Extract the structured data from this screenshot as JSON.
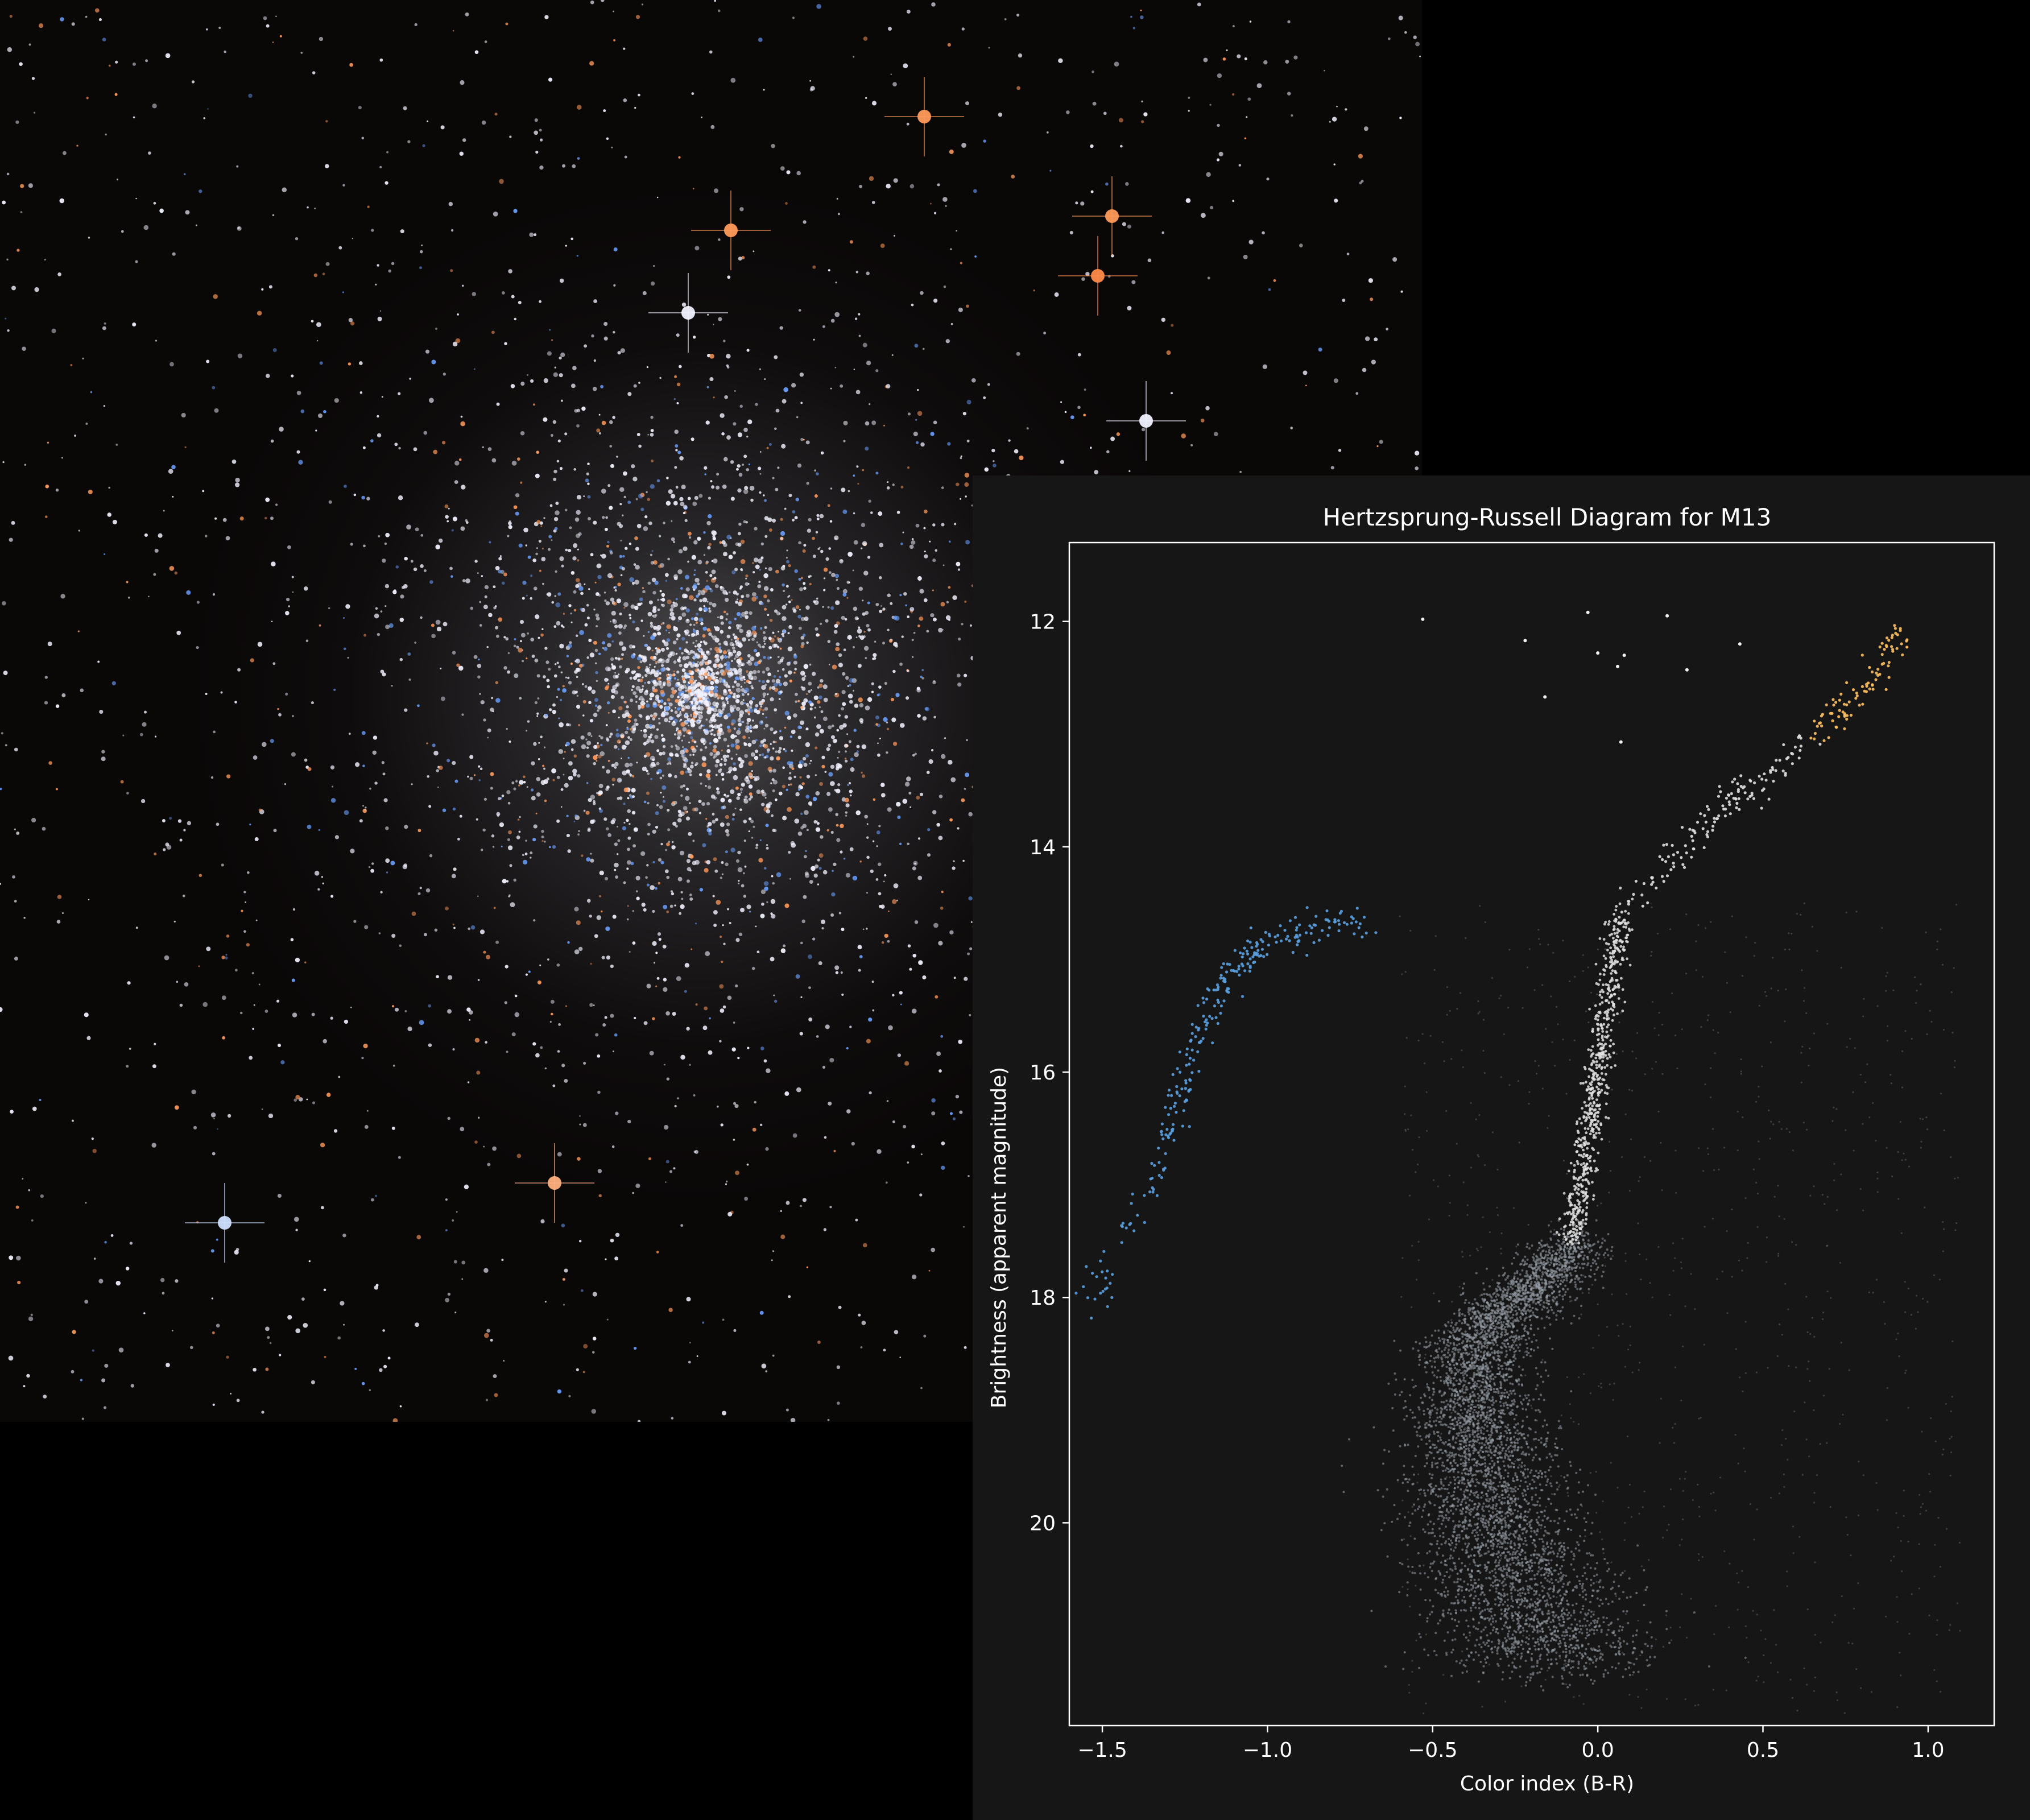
{
  "photo": {
    "name": "M13 globular cluster starfield",
    "colors": {
      "background": "#0a0707",
      "white_star": "#f2f2ff",
      "blue_star": "#6aa0ff",
      "orange_star": "#ff9a5a",
      "core_glow": "#e6e6f0"
    }
  },
  "chart_data": {
    "type": "scatter",
    "title": "Hertzsprung-Russell Diagram for M13",
    "xlabel": "Color index (B-R)",
    "ylabel": "Brightness (apparent magnitude)",
    "xlim": [
      -1.6,
      1.2
    ],
    "ylim": [
      21.8,
      11.3
    ],
    "y_inverted": true,
    "grid": false,
    "legend": "none",
    "x_ticks": [
      -1.5,
      -1.0,
      -0.5,
      0.0,
      0.5,
      1.0
    ],
    "x_tick_labels": [
      "−1.5",
      "−1.0",
      "−0.5",
      "0.0",
      "0.5",
      "1.0"
    ],
    "y_ticks": [
      12,
      14,
      16,
      18,
      20
    ],
    "y_tick_labels": [
      "12",
      "14",
      "16",
      "18",
      "20"
    ],
    "colors": {
      "background": "#161616",
      "frame": "#ffffff",
      "horizontal_branch": "#5aa0e0",
      "red_giant_tip": "#ffc060",
      "main_sequence": "#9aa2ac",
      "giant_branch": "#e0e0e0"
    },
    "sequences": [
      {
        "region": "main-sequence",
        "x": [
          -0.05,
          -0.2,
          -0.35,
          -0.38,
          -0.36,
          -0.33,
          -0.28,
          -0.2,
          -0.12
        ],
        "y": [
          17.5,
          17.9,
          18.3,
          18.8,
          19.3,
          19.8,
          20.3,
          20.8,
          21.3
        ]
      },
      {
        "region": "subgiant-branch",
        "x": [
          0.07,
          0.04,
          0.01,
          -0.02,
          -0.05,
          -0.08
        ],
        "y": [
          14.6,
          15.2,
          15.8,
          16.4,
          17.0,
          17.5
        ]
      },
      {
        "region": "red-giant-branch",
        "x": [
          0.1,
          0.2,
          0.3,
          0.4,
          0.5,
          0.6,
          0.7,
          0.8,
          0.88,
          0.92
        ],
        "y": [
          14.5,
          14.2,
          13.9,
          13.6,
          13.4,
          13.1,
          12.9,
          12.6,
          12.3,
          12.05
        ]
      },
      {
        "region": "horizontal-branch",
        "x": [
          -1.55,
          -1.45,
          -1.35,
          -1.3,
          -1.25,
          -1.2,
          -1.15,
          -1.1,
          -1.05,
          -1.0,
          -0.9,
          -0.8,
          -0.7
        ],
        "y": [
          18.1,
          17.5,
          17.0,
          16.5,
          16.0,
          15.6,
          15.3,
          15.1,
          14.95,
          14.85,
          14.75,
          14.7,
          14.65
        ]
      }
    ],
    "bright_isolated_stars": {
      "x": [
        -0.53,
        -0.22,
        -0.03,
        0.08,
        0.21,
        0.27,
        0.0,
        0.06,
        0.43,
        -0.16,
        0.07
      ],
      "y": [
        11.98,
        12.17,
        11.92,
        12.3,
        11.95,
        12.43,
        12.28,
        12.4,
        12.2,
        12.67,
        13.07
      ]
    }
  }
}
